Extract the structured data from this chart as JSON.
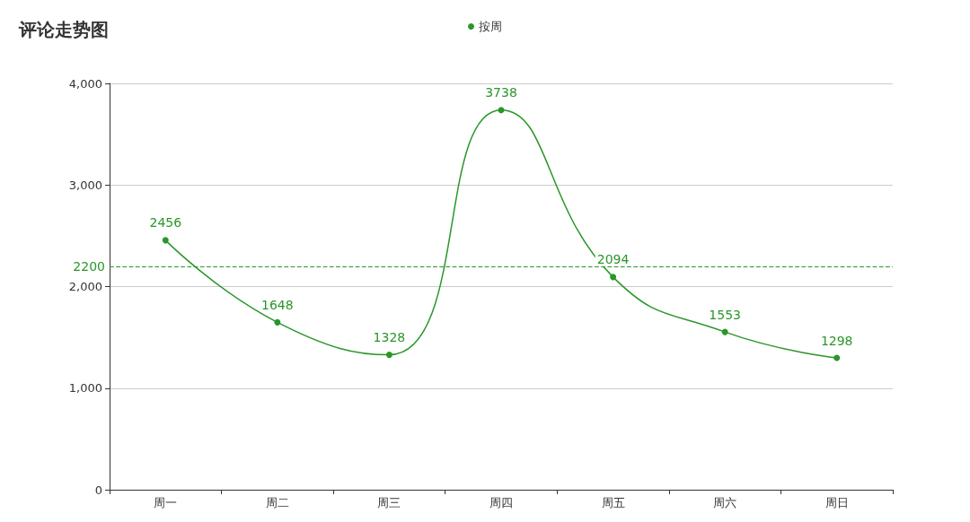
{
  "chart_data": {
    "type": "line",
    "title": "评论走势图",
    "categories": [
      "周一",
      "周二",
      "周三",
      "周四",
      "周五",
      "周六",
      "周日"
    ],
    "series": [
      {
        "name": "按周",
        "color": "#2a962a",
        "values": [
          2456,
          1648,
          1328,
          3738,
          2094,
          1553,
          1298
        ]
      }
    ],
    "ylim": [
      0,
      4000
    ],
    "yticks": [
      0,
      {
        "value": 1000,
        "label": "1,000"
      },
      {
        "value": 2000,
        "label": "2,000"
      },
      {
        "value": 3000,
        "label": "3,000"
      },
      {
        "value": 4000,
        "label": "4,000"
      }
    ],
    "ref_lines": [
      {
        "axis": "y",
        "value": 2200,
        "label": "2200",
        "color": "#2a962a",
        "line_style": "dashed"
      }
    ],
    "data_labels": true,
    "grid": "y",
    "legend": "top",
    "marker": "circle",
    "line_style": "solid"
  }
}
